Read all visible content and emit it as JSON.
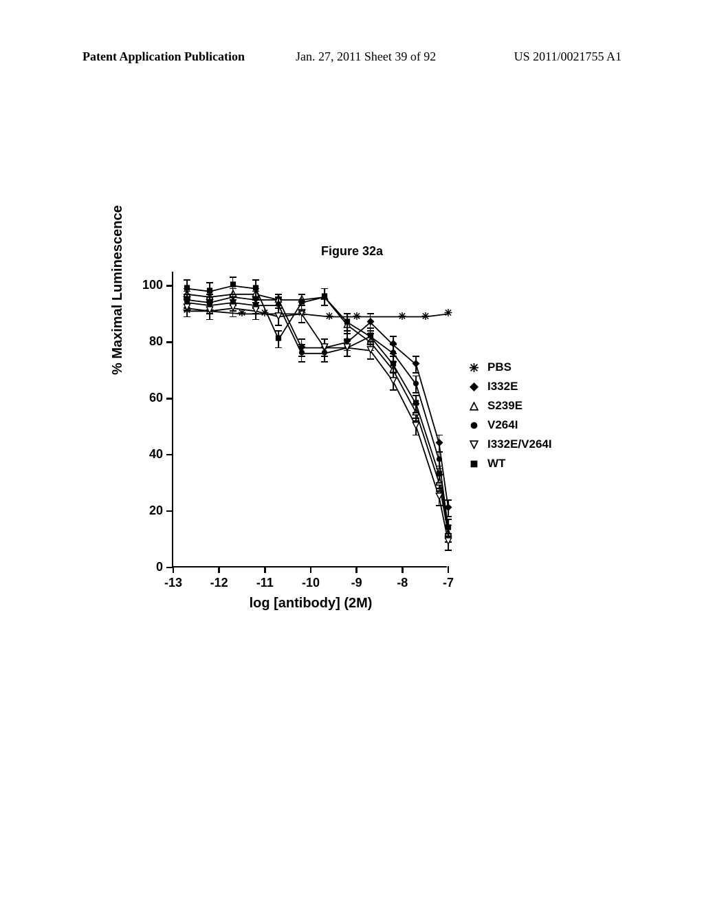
{
  "header": {
    "left": "Patent Application Publication",
    "center": "Jan. 27, 2011  Sheet 39 of 92",
    "right": "US 2011/0021755 A1"
  },
  "figure": {
    "title": "Figure 32a",
    "ylabel": "% Maximal Luminescence",
    "xlabel": "log [antibody] (2M)",
    "xlim": [
      -13,
      -7
    ],
    "ylim": [
      0,
      105
    ],
    "yticks": [
      0,
      20,
      40,
      60,
      80,
      100
    ],
    "xticks": [
      -13,
      -12,
      -11,
      -10,
      -9,
      -8,
      -7
    ],
    "title_fontsize": 18,
    "label_fontsize": 20,
    "tick_fontsize": 18,
    "axis_line_width": 2.5,
    "background_color": "#ffffff",
    "curve_color": "#000000",
    "point_color": "#000000"
  },
  "series": [
    {
      "name": "PBS",
      "marker": "asterisk",
      "x": [
        -12.7,
        -12.2,
        -11.5,
        -11,
        -10.2,
        -9.6,
        -9,
        -8,
        -7.5,
        -7
      ],
      "y": [
        91,
        91,
        90,
        90,
        90,
        89,
        89,
        89,
        89,
        90
      ],
      "err": [
        0,
        0,
        0,
        0,
        0,
        0,
        0,
        0,
        0,
        0
      ]
    },
    {
      "name": "I332E",
      "marker": "diamond-filled",
      "x": [
        -12.7,
        -12.2,
        -11.7,
        -11.2,
        -10.7,
        -10.2,
        -9.7,
        -9.2,
        -8.7,
        -8.2,
        -7.7,
        -7.2,
        -7
      ],
      "y": [
        95,
        94,
        96,
        95,
        95,
        78,
        78,
        80,
        87,
        79,
        72,
        44,
        21
      ],
      "err": [
        3,
        3,
        3,
        3,
        2,
        3,
        3,
        3,
        3,
        3,
        3,
        3,
        3
      ]
    },
    {
      "name": "S239E",
      "marker": "triangle-open",
      "x": [
        -12.7,
        -12.2,
        -11.7,
        -11.2,
        -10.7,
        -10.2,
        -9.7,
        -9.2,
        -8.7,
        -8.2,
        -7.7,
        -7.2,
        -7
      ],
      "y": [
        97,
        96,
        97,
        97,
        95,
        95,
        96,
        86,
        80,
        70,
        55,
        30,
        12
      ],
      "err": [
        2,
        2,
        2,
        2,
        2,
        2,
        3,
        3,
        3,
        3,
        3,
        3,
        3
      ]
    },
    {
      "name": "V264I",
      "marker": "circle-filled",
      "x": [
        -12.7,
        -12.2,
        -11.7,
        -11.2,
        -10.7,
        -10.2,
        -9.7,
        -9.2,
        -8.7,
        -8.2,
        -7.7,
        -7.2,
        -7
      ],
      "y": [
        94,
        93,
        94,
        93,
        93,
        76,
        76,
        78,
        82,
        76,
        65,
        38,
        14
      ],
      "err": [
        3,
        3,
        3,
        3,
        3,
        3,
        3,
        3,
        3,
        3,
        3,
        3,
        3
      ]
    },
    {
      "name": "I332E/V264I",
      "marker": "triangle-down-open",
      "x": [
        -12.7,
        -12.2,
        -11.7,
        -11.2,
        -10.7,
        -10.2,
        -9.7,
        -9.2,
        -8.7,
        -8.2,
        -7.7,
        -7.2,
        -7
      ],
      "y": [
        92,
        91,
        92,
        91,
        89,
        90,
        78,
        78,
        77,
        66,
        50,
        25,
        9
      ],
      "err": [
        3,
        3,
        3,
        3,
        3,
        3,
        3,
        3,
        3,
        3,
        3,
        3,
        3
      ]
    },
    {
      "name": "WT",
      "marker": "square-filled",
      "x": [
        -12.7,
        -12.2,
        -11.7,
        -11.2,
        -10.7,
        -10.2,
        -9.7,
        -9.2,
        -8.7,
        -8.2,
        -7.7,
        -7.2,
        -7
      ],
      "y": [
        99,
        98,
        100,
        99,
        81,
        94,
        96,
        87,
        82,
        72,
        58,
        33,
        14
      ],
      "err": [
        3,
        3,
        3,
        3,
        3,
        3,
        3,
        3,
        3,
        3,
        3,
        3,
        3
      ]
    }
  ],
  "legend_order": [
    "PBS",
    "I332E",
    "S239E",
    "V264I",
    "I332E/V264I",
    "WT"
  ]
}
